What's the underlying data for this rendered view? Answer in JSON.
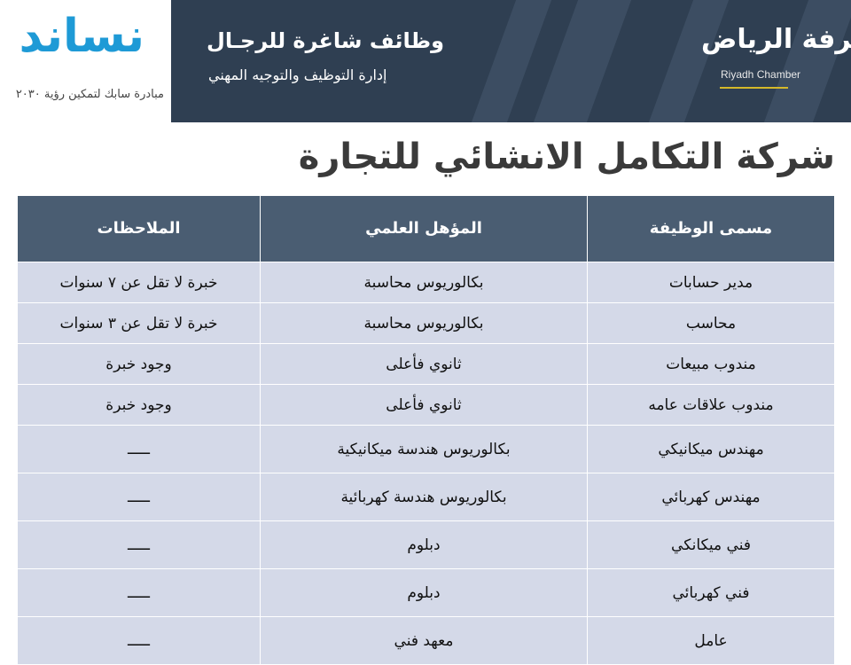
{
  "header": {
    "left_logo": {
      "name": "نساند",
      "tagline": "مبادرة سابك لتمكين رؤية ٢٠٣٠"
    },
    "title": "وظائف شاغرة للرجـال",
    "subtitle": "إدارة التوظيف والتوجيه المهني",
    "right_logo": {
      "name_ar": "غرفة الرياض",
      "name_en": "Riyadh Chamber"
    }
  },
  "company": "شركة التكامل الانشائي للتجارة",
  "colors": {
    "header_bg": "#4a5d72",
    "row_bg": "#d4d9e8",
    "banner_bg": "#2f3f52",
    "accent": "#d4b82a"
  },
  "table": {
    "columns": [
      "مسمى الوظيفة",
      "المؤهل العلمي",
      "الملاحظات"
    ],
    "rows": [
      [
        "مدير حسابات",
        "بكالوريوس محاسبة",
        "خبرة لا تقل عن ٧ سنوات"
      ],
      [
        "محاسب",
        "بكالوريوس محاسبة",
        "خبرة لا تقل عن ٣ سنوات"
      ],
      [
        "مندوب مبيعات",
        "ثانوي فأعلى",
        "وجود خبرة"
      ],
      [
        "مندوب علاقات عامه",
        "ثانوي فأعلى",
        "وجود خبرة"
      ],
      [
        "مهندس ميكانيكي",
        "بكالوريوس هندسة ميكانيكية",
        "ـــــ"
      ],
      [
        "مهندس كهربائي",
        "بكالوريوس هندسة كهربائية",
        "ـــــ"
      ],
      [
        "فني ميكانكي",
        "دبلوم",
        "ـــــ"
      ],
      [
        "فني كهربائي",
        "دبلوم",
        "ـــــ"
      ],
      [
        "عامل",
        "معهد فني",
        "ـــــ"
      ]
    ]
  }
}
